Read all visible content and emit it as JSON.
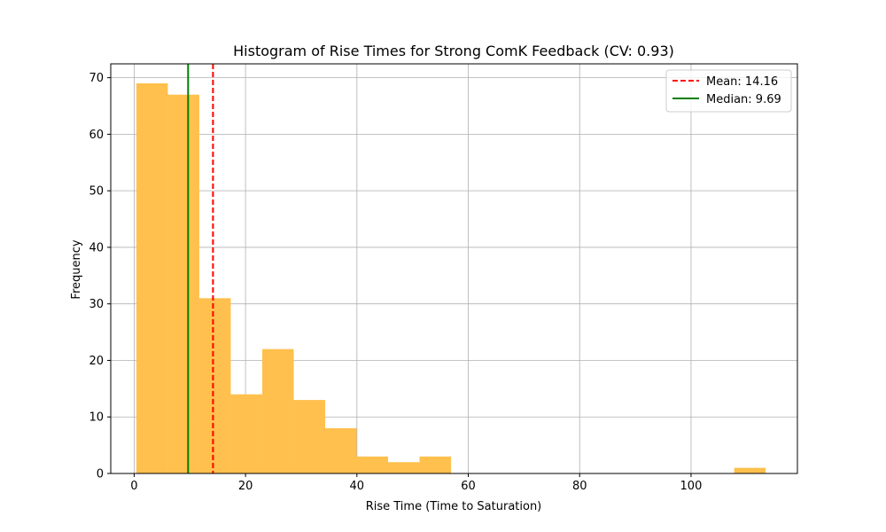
{
  "chart_data": {
    "type": "bar",
    "title": "Histogram of Rise Times for Strong ComK Feedback (CV: 0.93)",
    "xlabel": "Rise Time (Time to Saturation)",
    "ylabel": "Frequency",
    "xlim": [
      -4.2,
      119.1
    ],
    "ylim": [
      0,
      72.45
    ],
    "xticks": [
      0,
      20,
      40,
      60,
      80,
      100
    ],
    "yticks": [
      0,
      10,
      20,
      30,
      40,
      50,
      60,
      70
    ],
    "grid": true,
    "legend_position": "top-right",
    "bin_edges": [
      0.4,
      6.05,
      11.7,
      17.35,
      23.0,
      28.65,
      34.3,
      39.95,
      45.6,
      51.25,
      56.9,
      62.55,
      68.2,
      73.85,
      79.5,
      85.15,
      90.8,
      96.45,
      102.1,
      107.75,
      113.4
    ],
    "series": [
      {
        "values": [
          69,
          67,
          31,
          14,
          22,
          13,
          8,
          3,
          2,
          3,
          0,
          0,
          0,
          0,
          0,
          0,
          0,
          0,
          0,
          1
        ],
        "color": "#ffc04d"
      }
    ],
    "reference_lines": [
      {
        "name": "Mean: 14.16",
        "x": 14.16,
        "color": "#ff0000",
        "style": "dashed"
      },
      {
        "name": "Median: 9.69",
        "x": 9.69,
        "color": "#008000",
        "style": "solid"
      }
    ]
  }
}
